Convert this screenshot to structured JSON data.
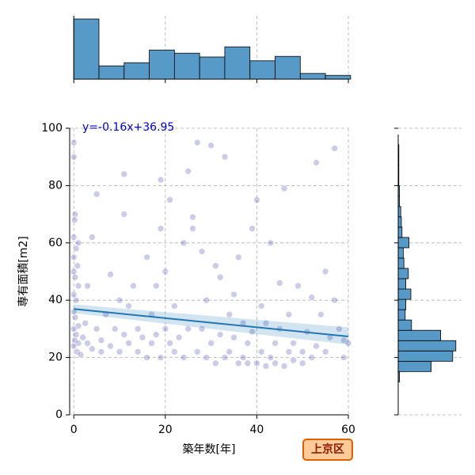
{
  "chart_data": [
    {
      "type": "scatter",
      "xlabel": "築年数[年]",
      "ylabel": "専有面積[m2]",
      "annotation": "y=-0.16x+36.95",
      "badge": "上京区",
      "xlim": [
        -0.9,
        60
      ],
      "ylim": [
        0,
        100
      ],
      "xticks": [
        0,
        20,
        40,
        60
      ],
      "yticks": [
        0,
        20,
        40,
        60,
        80,
        100
      ],
      "grid": true,
      "color": "#00008b",
      "regression_color": "#1f77b4",
      "regression": {
        "slope": -0.16,
        "intercept": 36.95,
        "ci_lower": [
          35.5,
          24.5
        ],
        "ci_upper": [
          38.5,
          30.5
        ]
      },
      "x": [
        0,
        0,
        0.3,
        0.2,
        0,
        1,
        0.5,
        0,
        0.8,
        0,
        0.3,
        1,
        0,
        0.5,
        0,
        0.3,
        1,
        0,
        0.5,
        0.2,
        1,
        0,
        0.7,
        1.5,
        2,
        2.5,
        3,
        3,
        4,
        4,
        5,
        5,
        6,
        6,
        7,
        8,
        8,
        9,
        10,
        10,
        11,
        11,
        11,
        12,
        12,
        13,
        14,
        14,
        15,
        16,
        16,
        17,
        17,
        18,
        18,
        19,
        19,
        19,
        20,
        20,
        21,
        21,
        22,
        22,
        23,
        24,
        24,
        25,
        25,
        26,
        26,
        27,
        27,
        28,
        28,
        29,
        29,
        30,
        30,
        31,
        31,
        32,
        32,
        33,
        33,
        34,
        34,
        35,
        35,
        36,
        36,
        37,
        37,
        38,
        38,
        39,
        39,
        40,
        40,
        41,
        41,
        42,
        42,
        43,
        43,
        44,
        44,
        45,
        45,
        46,
        46,
        47,
        47,
        48,
        48,
        49,
        50,
        50,
        51,
        52,
        52,
        53,
        53,
        54,
        55,
        55,
        56,
        57,
        57,
        58,
        59,
        59,
        60
      ],
      "y": [
        95,
        90,
        70,
        68,
        62,
        60,
        58,
        55,
        52,
        50,
        48,
        45,
        42,
        40,
        36,
        34,
        31,
        30,
        28,
        26,
        25,
        24,
        22,
        21,
        27,
        32,
        45,
        25,
        23,
        62,
        77,
        30,
        22,
        26,
        35,
        24,
        49,
        30,
        22,
        40,
        84,
        70,
        28,
        25,
        38,
        45,
        22,
        30,
        27,
        55,
        20,
        25,
        35,
        28,
        45,
        20,
        82,
        65,
        30,
        50,
        75,
        25,
        38,
        22,
        27,
        20,
        60,
        85,
        30,
        69,
        65,
        22,
        95,
        30,
        57,
        20,
        40,
        94,
        25,
        18,
        52,
        28,
        48,
        20,
        90,
        35,
        22,
        27,
        42,
        18,
        55,
        32,
        20,
        25,
        18,
        65,
        29,
        75,
        18,
        22,
        38,
        17,
        32,
        20,
        60,
        25,
        18,
        46,
        30,
        79,
        17,
        22,
        35,
        19,
        25,
        45,
        22,
        18,
        29,
        41,
        20,
        88,
        24,
        35,
        22,
        50,
        27,
        93,
        40,
        30,
        20,
        26,
        25
      ]
    },
    {
      "type": "histogram",
      "orientation": "vertical",
      "color": "#5799c7",
      "grid": true,
      "xlim": [
        -0.9,
        60
      ],
      "ylim": [
        0,
        100
      ],
      "xticks": [
        0,
        20,
        40,
        60
      ],
      "bins": [
        0,
        5.5,
        11,
        16.5,
        22,
        27.5,
        33,
        38.5,
        44,
        49.5,
        55,
        60.5
      ],
      "counts": [
        95,
        21,
        26,
        46,
        41,
        35,
        51,
        29,
        36,
        9,
        6
      ]
    },
    {
      "type": "histogram",
      "orientation": "horizontal",
      "color": "#5799c7",
      "grid": true,
      "xlim": [
        0,
        100
      ],
      "ylim": [
        0,
        100
      ],
      "yticks": [
        0,
        20,
        40,
        60,
        80,
        100
      ],
      "bins": [
        11.5,
        15.1,
        18.7,
        22.3,
        25.9,
        29.5,
        33.1,
        36.7,
        40.3,
        43.9,
        47.5,
        51.1,
        54.7,
        58.3,
        61.9,
        65.5,
        69.1,
        72.7,
        76.3,
        79.9,
        83.5,
        87.1,
        90.7,
        94.3
      ],
      "counts": [
        2,
        52,
        86,
        91,
        67,
        21,
        11,
        12,
        20,
        12,
        16,
        9,
        8,
        17,
        6,
        5,
        4,
        2,
        2,
        1,
        1,
        1,
        1
      ]
    }
  ]
}
